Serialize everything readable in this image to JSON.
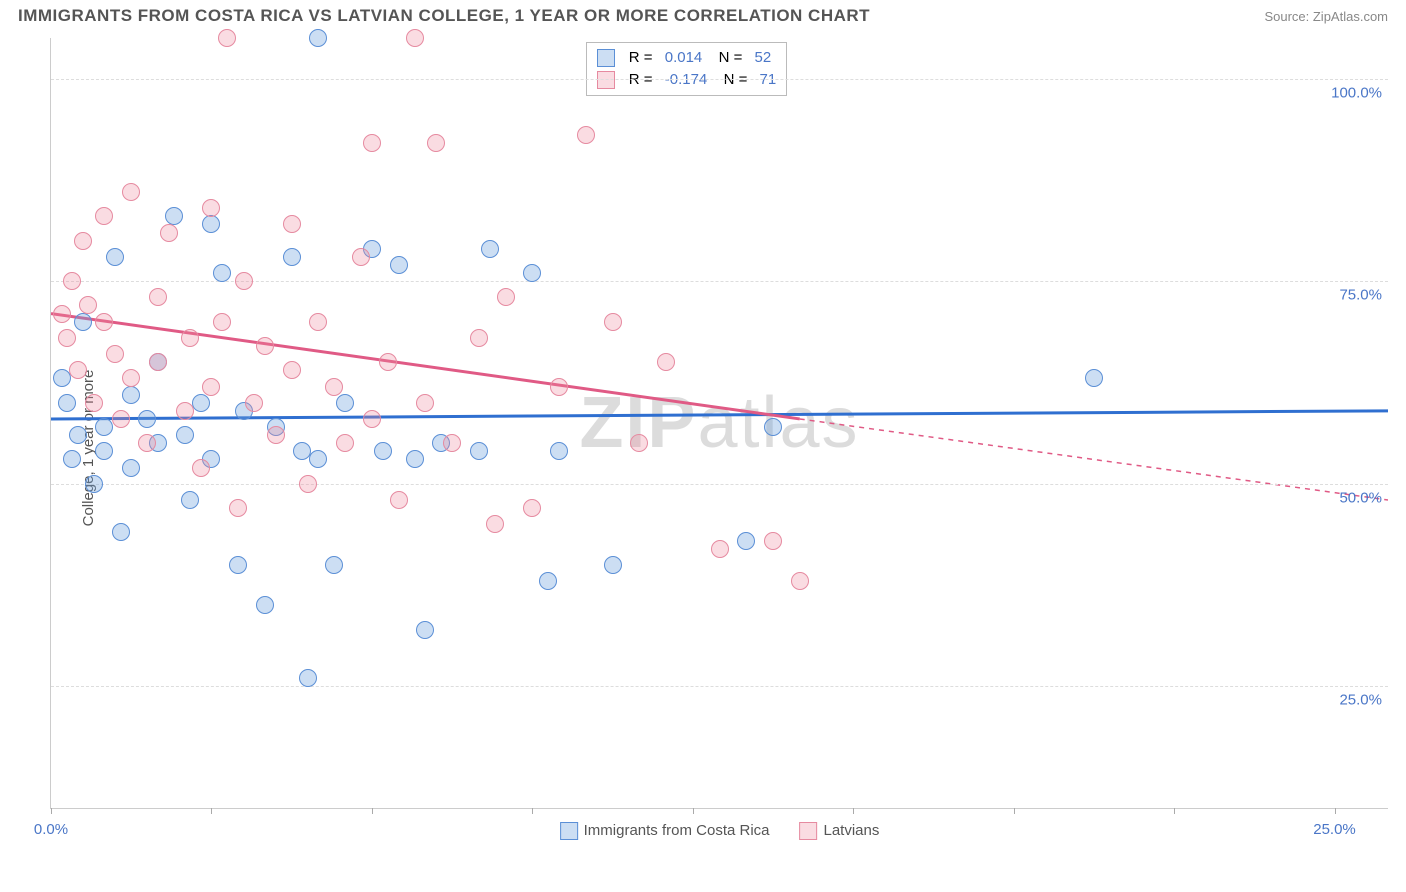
{
  "header": {
    "title": "IMMIGRANTS FROM COSTA RICA VS LATVIAN COLLEGE, 1 YEAR OR MORE CORRELATION CHART",
    "source": "Source: ZipAtlas.com"
  },
  "ylabel": "College, 1 year or more",
  "watermark": {
    "left": "ZIP",
    "right": "atlas"
  },
  "chart": {
    "type": "scatter",
    "xlim": [
      0,
      25
    ],
    "ylim": [
      10,
      105
    ],
    "yticks": [
      25,
      50,
      75,
      100
    ],
    "ytick_labels": [
      "25.0%",
      "50.0%",
      "75.0%",
      "100.0%"
    ],
    "xticks": [
      0,
      3,
      6,
      9,
      12,
      15,
      18,
      21,
      24
    ],
    "xtick_labels": {
      "0": "0.0%",
      "24": "25.0%"
    },
    "grid_color": "#dddddd",
    "background_color": "#ffffff",
    "axis_label_color": "#4a76c7",
    "marker_radius": 8,
    "marker_opacity": 0.45,
    "series": [
      {
        "name": "Immigrants from Costa Rica",
        "color_fill": "rgba(108,160,220,0.35)",
        "color_stroke": "#5b8fd6",
        "R": "0.014",
        "N": "52",
        "trend": {
          "x1": 0,
          "y1": 58,
          "x2": 25,
          "y2": 59,
          "color": "#2f6fd0",
          "width": 3
        },
        "points": [
          [
            0.2,
            63
          ],
          [
            0.3,
            60
          ],
          [
            0.4,
            53
          ],
          [
            0.5,
            56
          ],
          [
            0.6,
            70
          ],
          [
            0.8,
            50
          ],
          [
            1.0,
            57
          ],
          [
            1.0,
            54
          ],
          [
            1.2,
            78
          ],
          [
            1.3,
            44
          ],
          [
            1.5,
            61
          ],
          [
            1.5,
            52
          ],
          [
            1.8,
            58
          ],
          [
            2.0,
            65
          ],
          [
            2.0,
            55
          ],
          [
            2.3,
            83
          ],
          [
            2.5,
            56
          ],
          [
            2.6,
            48
          ],
          [
            2.8,
            60
          ],
          [
            3.0,
            82
          ],
          [
            3.0,
            53
          ],
          [
            3.2,
            76
          ],
          [
            3.5,
            40
          ],
          [
            3.6,
            59
          ],
          [
            4.0,
            35
          ],
          [
            4.2,
            57
          ],
          [
            4.5,
            78
          ],
          [
            4.7,
            54
          ],
          [
            4.8,
            26
          ],
          [
            5.0,
            105
          ],
          [
            5.0,
            53
          ],
          [
            5.3,
            40
          ],
          [
            5.5,
            60
          ],
          [
            6.0,
            79
          ],
          [
            6.2,
            54
          ],
          [
            6.5,
            77
          ],
          [
            6.8,
            53
          ],
          [
            7.0,
            32
          ],
          [
            7.3,
            55
          ],
          [
            8.0,
            54
          ],
          [
            8.2,
            79
          ],
          [
            9.0,
            76
          ],
          [
            9.3,
            38
          ],
          [
            9.5,
            54
          ],
          [
            10.5,
            40
          ],
          [
            13.0,
            43
          ],
          [
            13.5,
            57
          ],
          [
            19.5,
            63
          ]
        ]
      },
      {
        "name": "Latvians",
        "color_fill": "rgba(240,140,160,0.30)",
        "color_stroke": "#e68aa0",
        "R": "-0.174",
        "N": "71",
        "trend": {
          "x1": 0,
          "y1": 71,
          "x2": 14,
          "y2": 58,
          "dash_x2": 25,
          "dash_y2": 48,
          "color": "#e05a85",
          "width": 3
        },
        "points": [
          [
            0.2,
            71
          ],
          [
            0.3,
            68
          ],
          [
            0.4,
            75
          ],
          [
            0.5,
            64
          ],
          [
            0.6,
            80
          ],
          [
            0.7,
            72
          ],
          [
            0.8,
            60
          ],
          [
            1.0,
            83
          ],
          [
            1.0,
            70
          ],
          [
            1.2,
            66
          ],
          [
            1.3,
            58
          ],
          [
            1.5,
            86
          ],
          [
            1.5,
            63
          ],
          [
            1.8,
            55
          ],
          [
            2.0,
            73
          ],
          [
            2.0,
            65
          ],
          [
            2.2,
            81
          ],
          [
            2.5,
            59
          ],
          [
            2.6,
            68
          ],
          [
            2.8,
            52
          ],
          [
            3.0,
            84
          ],
          [
            3.0,
            62
          ],
          [
            3.2,
            70
          ],
          [
            3.3,
            105
          ],
          [
            3.5,
            47
          ],
          [
            3.6,
            75
          ],
          [
            3.8,
            60
          ],
          [
            4.0,
            67
          ],
          [
            4.2,
            56
          ],
          [
            4.5,
            82
          ],
          [
            4.5,
            64
          ],
          [
            4.8,
            50
          ],
          [
            5.0,
            70
          ],
          [
            5.3,
            62
          ],
          [
            5.5,
            55
          ],
          [
            5.8,
            78
          ],
          [
            6.0,
            92
          ],
          [
            6.0,
            58
          ],
          [
            6.3,
            65
          ],
          [
            6.5,
            48
          ],
          [
            6.8,
            105
          ],
          [
            7.0,
            60
          ],
          [
            7.2,
            92
          ],
          [
            7.5,
            55
          ],
          [
            8.0,
            68
          ],
          [
            8.3,
            45
          ],
          [
            8.5,
            73
          ],
          [
            9.0,
            47
          ],
          [
            9.5,
            62
          ],
          [
            10.0,
            93
          ],
          [
            10.5,
            70
          ],
          [
            11.0,
            55
          ],
          [
            11.5,
            65
          ],
          [
            12.5,
            42
          ],
          [
            13.5,
            43
          ],
          [
            14.0,
            38
          ]
        ]
      }
    ]
  },
  "bottom_legend": [
    {
      "label": "Immigrants from Costa Rica",
      "fill": "rgba(108,160,220,0.35)",
      "stroke": "#5b8fd6"
    },
    {
      "label": "Latvians",
      "fill": "rgba(240,140,160,0.30)",
      "stroke": "#e68aa0"
    }
  ]
}
